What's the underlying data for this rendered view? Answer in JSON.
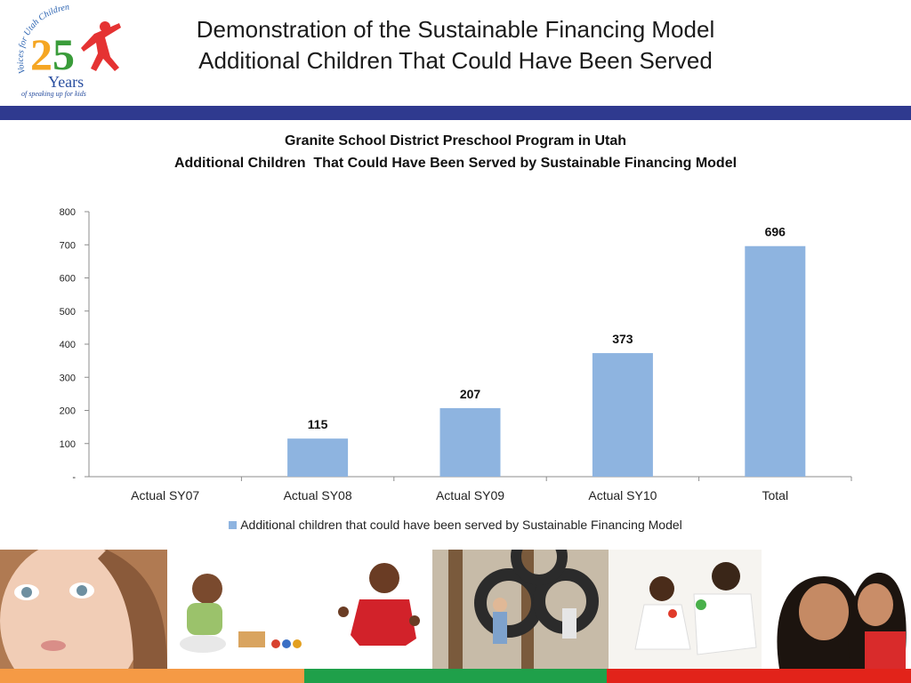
{
  "slide": {
    "title_line1": "Demonstration of the Sustainable Financing Model",
    "title_line2": "Additional Children That Could Have Been Served"
  },
  "logo": {
    "arc_text": "Voices for Utah Children",
    "number": "25",
    "years": "Years",
    "tagline": "of speaking up for kids",
    "colors": {
      "arc": "#2a62b0",
      "two": "#f5a623",
      "five": "#3a9c3a",
      "figure": "#e53232",
      "years": "#2a4fa0"
    }
  },
  "colors": {
    "band": "#2f3a8f",
    "bar": "#8eb4e0",
    "footer": [
      "#f59a45",
      "#1fa04a",
      "#e2231a"
    ]
  },
  "chart_data": {
    "type": "bar",
    "title": "Granite School District Preschool Program in Utah",
    "subtitle": "Additional Children  That Could Have Been Served by Sustainable Financing Model",
    "categories": [
      "Actual SY07",
      "Actual SY08",
      "Actual SY09",
      "Actual SY10",
      "Total"
    ],
    "series": [
      {
        "name": "Additional children that could have been served by Sustainable Financing Model",
        "values": [
          0,
          115,
          207,
          373,
          696
        ]
      }
    ],
    "data_labels": [
      "",
      "115",
      "207",
      "373",
      "696"
    ],
    "ylim": [
      0,
      800
    ],
    "yticks": [
      0,
      100,
      200,
      300,
      400,
      500,
      600,
      700,
      800
    ],
    "ytick_labels": [
      "-",
      "100",
      "200",
      "300",
      "400",
      "500",
      "600",
      "700",
      "800"
    ],
    "grid": false,
    "legend_position": "bottom"
  }
}
